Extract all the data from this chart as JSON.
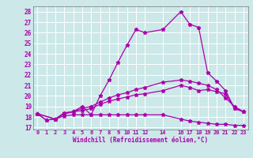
{
  "xlabel": "Windchill (Refroidissement éolien,°C)",
  "bg_color": "#cce8e8",
  "line_color": "#aa00aa",
  "grid_color": "#ffffff",
  "xtick_labels": [
    "0",
    "1",
    "2",
    "3",
    "4",
    "5",
    "6",
    "7",
    "8",
    "9",
    "10",
    "11",
    "12",
    "14",
    "16",
    "17",
    "18",
    "19",
    "20",
    "21",
    "22",
    "23"
  ],
  "xtick_pos": [
    0,
    1,
    2,
    3,
    4,
    5,
    6,
    7,
    8,
    9,
    10,
    11,
    12,
    14,
    16,
    17,
    18,
    19,
    20,
    21,
    22,
    23
  ],
  "ytick_labels": [
    "17",
    "18",
    "19",
    "20",
    "21",
    "22",
    "23",
    "24",
    "25",
    "26",
    "27",
    "28"
  ],
  "ytick_pos": [
    17,
    18,
    19,
    20,
    21,
    22,
    23,
    24,
    25,
    26,
    27,
    28
  ],
  "ylim": [
    16.8,
    28.5
  ],
  "xlim": [
    -0.5,
    23.5
  ],
  "line1_x": [
    0,
    1,
    2,
    3,
    4,
    5,
    6,
    7,
    8,
    9,
    10,
    11,
    12,
    14,
    16,
    17,
    18,
    19,
    20,
    21,
    22,
    23
  ],
  "line1_y": [
    18.3,
    17.7,
    17.8,
    18.4,
    18.5,
    19.0,
    18.2,
    20.0,
    21.5,
    23.2,
    24.8,
    26.3,
    26.0,
    26.3,
    28.0,
    26.8,
    26.5,
    22.2,
    21.4,
    20.5,
    18.8,
    18.5
  ],
  "line2_x": [
    0,
    1,
    2,
    3,
    4,
    5,
    6,
    7,
    8,
    9,
    10,
    11,
    12,
    14,
    16,
    17,
    18,
    19,
    20,
    21,
    22,
    23
  ],
  "line2_y": [
    18.3,
    17.7,
    17.8,
    18.1,
    18.2,
    18.2,
    18.2,
    18.2,
    18.2,
    18.2,
    18.2,
    18.2,
    18.2,
    18.2,
    17.8,
    17.6,
    17.5,
    17.4,
    17.3,
    17.3,
    17.2,
    17.2
  ],
  "line3_x": [
    0,
    2,
    3,
    4,
    5,
    6,
    7,
    8,
    9,
    10,
    11,
    12,
    14,
    16,
    17,
    18,
    19,
    20,
    21,
    22,
    23
  ],
  "line3_y": [
    18.3,
    17.8,
    18.3,
    18.5,
    18.6,
    18.8,
    19.2,
    19.5,
    19.7,
    19.9,
    20.1,
    20.2,
    20.5,
    21.0,
    20.8,
    20.5,
    20.6,
    20.4,
    20.2,
    18.8,
    18.5
  ],
  "line4_x": [
    0,
    2,
    3,
    4,
    5,
    6,
    7,
    8,
    9,
    10,
    11,
    12,
    14,
    16,
    17,
    18,
    19,
    20,
    21,
    22,
    23
  ],
  "line4_y": [
    18.3,
    17.8,
    18.3,
    18.5,
    18.8,
    19.0,
    19.4,
    19.8,
    20.1,
    20.3,
    20.6,
    20.8,
    21.3,
    21.5,
    21.4,
    21.2,
    21.0,
    20.6,
    19.8,
    19.0,
    18.5
  ]
}
